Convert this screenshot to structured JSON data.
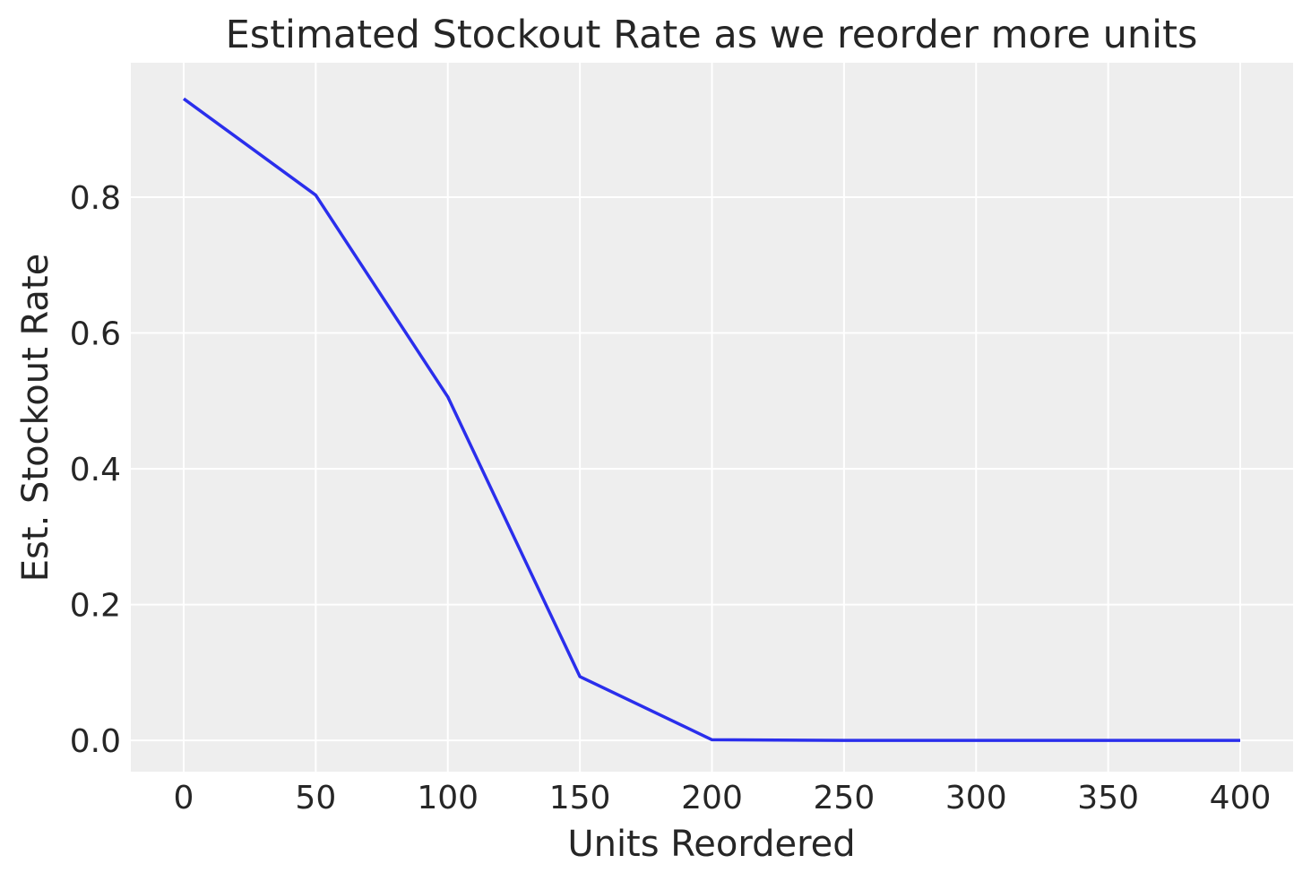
{
  "chart_data": {
    "type": "line",
    "title": "Estimated Stockout Rate as we reorder more units",
    "xlabel": "Units Reordered",
    "ylabel": "Est. Stockout Rate",
    "x": [
      0,
      50,
      100,
      150,
      200,
      250,
      300,
      350,
      400
    ],
    "series": [
      {
        "values": [
          0.945,
          0.803,
          0.506,
          0.094,
          0.001,
          0.0,
          0.0,
          0.0,
          0.0
        ]
      }
    ],
    "xlim": [
      -20,
      420
    ],
    "ylim": [
      -0.046,
      0.998
    ],
    "xticks": [
      0,
      50,
      100,
      150,
      200,
      250,
      300,
      350,
      400
    ],
    "xtick_labels": [
      "0",
      "50",
      "100",
      "150",
      "200",
      "250",
      "300",
      "350",
      "400"
    ],
    "yticks": [
      0.0,
      0.2,
      0.4,
      0.6,
      0.8
    ],
    "ytick_labels": [
      "0.0",
      "0.2",
      "0.4",
      "0.6",
      "0.8"
    ],
    "grid": true,
    "legend": "none",
    "colors": {
      "line": "#2a2eec",
      "plot_background": "#eeeeee",
      "grid": "#ffffff"
    }
  }
}
